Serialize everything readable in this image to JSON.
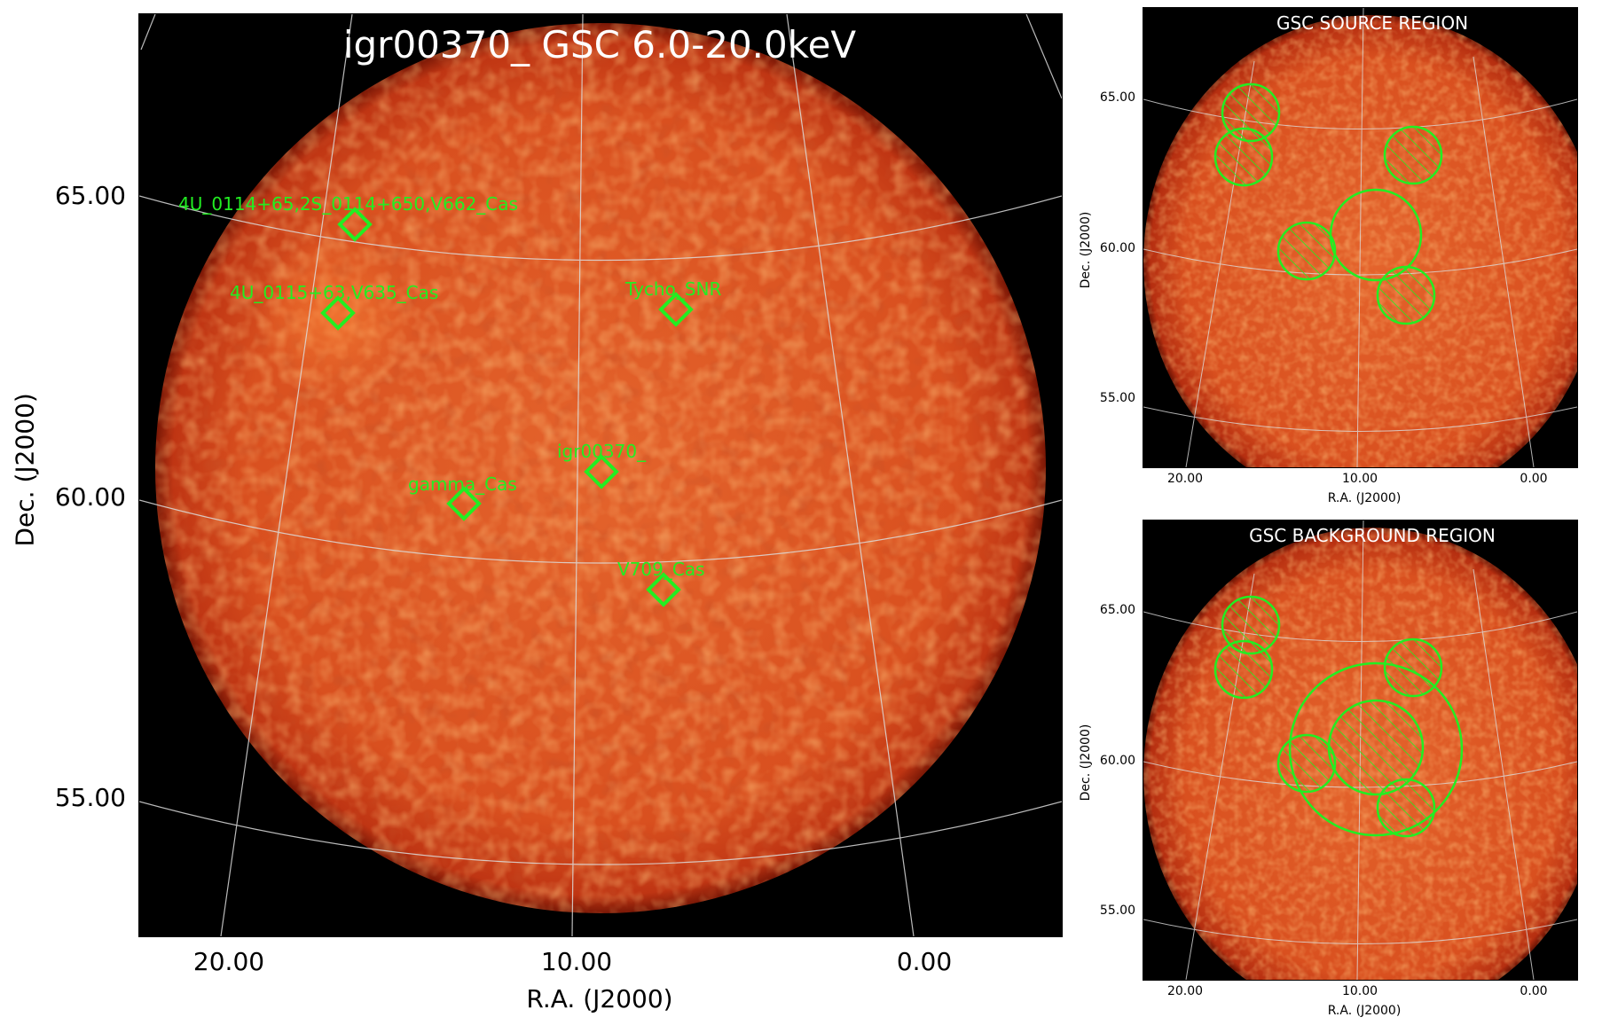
{
  "main": {
    "title": "igr00370_ GSC 6.0-20.0keV",
    "ylabel": "Dec. (J2000)",
    "xlabel": "R.A. (J2000)",
    "yticks": [
      "65.00",
      "60.00",
      "55.00"
    ],
    "xticks": [
      "20.00",
      "10.00",
      "0.00"
    ],
    "sources": [
      {
        "name": "4U_0114+65,2S_0114+650,V662_Cas"
      },
      {
        "name": "4U_0115+63,V635_Cas"
      },
      {
        "name": "Tycho_SNR"
      },
      {
        "name": "igr00370_"
      },
      {
        "name": "gamma_Cas"
      },
      {
        "name": "V709_Cas"
      }
    ]
  },
  "source_panel": {
    "title": "GSC SOURCE REGION",
    "ylabel": "Dec. (J2000)",
    "xlabel": "R.A. (J2000)",
    "yticks": [
      "65.00",
      "60.00",
      "55.00"
    ],
    "xticks": [
      "20.00",
      "10.00",
      "0.00"
    ]
  },
  "background_panel": {
    "title": "GSC BACKGROUND REGION",
    "ylabel": "Dec. (J2000)",
    "xlabel": "R.A. (J2000)",
    "yticks": [
      "65.00",
      "60.00",
      "55.00"
    ],
    "xticks": [
      "20.00",
      "10.00",
      "0.00"
    ]
  },
  "colors": {
    "disk_center": "#e05a26",
    "disk_edge": "#b42a10",
    "marker": "#22ee22",
    "grid": "#d8d8d8"
  }
}
